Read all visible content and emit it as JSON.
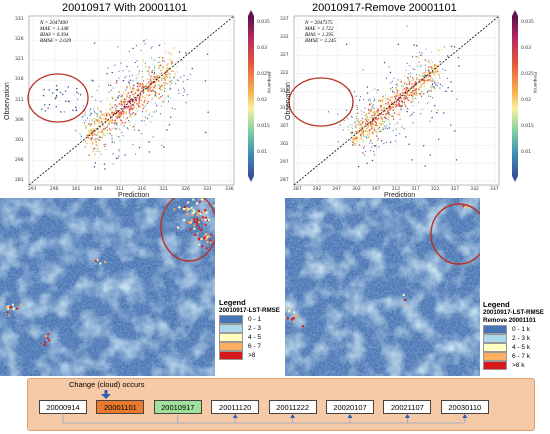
{
  "panels": [
    {
      "title": "20010917 With 20001101",
      "xlabel": "Prediction",
      "ylabel": "Observation",
      "x_ticks": [
        "291",
        "296",
        "301",
        "306",
        "311",
        "316",
        "321",
        "326",
        "331",
        "336"
      ],
      "y_ticks": [
        "281",
        "296",
        "301",
        "306",
        "311",
        "316",
        "321",
        "326",
        "331"
      ],
      "stats": [
        "N = 2047400",
        "MAE = 1.348",
        "BIAS = 0.394",
        "RMSE = 2.029"
      ],
      "colorbar_ticks": [
        "0.035",
        "0.03",
        "0.025",
        "0.02",
        "0.015",
        "0.01"
      ],
      "colorbar_label": "Frequency"
    },
    {
      "title": "20010917-Remove 20001101",
      "xlabel": "Prediction",
      "ylabel": "Observation",
      "x_ticks": [
        "287",
        "292",
        "297",
        "302",
        "307",
        "312",
        "317",
        "322",
        "327",
        "332",
        "337"
      ],
      "y_ticks": [
        "287",
        "297",
        "302",
        "307",
        "312",
        "317",
        "322",
        "327",
        "332",
        "337"
      ],
      "stats": [
        "N = 2047375",
        "MAE = 1.722",
        "BIAS = 1.295",
        "RMSE = 2.245"
      ],
      "colorbar_ticks": [
        "0.035",
        "0.03",
        "0.025",
        "0.02",
        "0.015",
        "0.01"
      ],
      "colorbar_label": "Frequency"
    }
  ],
  "legends": [
    {
      "title": "Legend",
      "subtitle": [
        "20010917-LST-RMSE"
      ],
      "items": [
        {
          "label": "0 - 1",
          "color": "#4575b4"
        },
        {
          "label": "2 - 3",
          "color": "#abd9e9"
        },
        {
          "label": "4 - 5",
          "color": "#ffffbf"
        },
        {
          "label": "6 - 7",
          "color": "#fdae61"
        },
        {
          "label": ">8",
          "color": "#d7191c"
        }
      ]
    },
    {
      "title": "Legend",
      "subtitle": [
        "20010917-LST-RMSE",
        "Remove 20001101"
      ],
      "items": [
        {
          "label": "0 - 1 k",
          "color": "#4575b4"
        },
        {
          "label": "2 - 3 k",
          "color": "#abd9e9"
        },
        {
          "label": "4 - 5 k",
          "color": "#ffffbf"
        },
        {
          "label": "6 - 7 k",
          "color": "#fdae61"
        },
        {
          "label": ">8 k",
          "color": "#d7191c"
        }
      ]
    }
  ],
  "timeline": {
    "change_label": "Change (cloud) occurs",
    "dates": [
      {
        "label": "20000914",
        "fill": "#ffffff"
      },
      {
        "label": "20001101",
        "fill": "#e87a2d"
      },
      {
        "label": "20010917",
        "fill": "#9fe09a"
      },
      {
        "label": "20011120",
        "fill": "#ffffff"
      },
      {
        "label": "20011222",
        "fill": "#ffffff"
      },
      {
        "label": "20020107",
        "fill": "#ffffff"
      },
      {
        "label": "20021107",
        "fill": "#ffffff"
      },
      {
        "label": "20030110",
        "fill": "#ffffff"
      }
    ],
    "arrow_color": "#2f5fb3",
    "highlight_color": "#b83226"
  }
}
